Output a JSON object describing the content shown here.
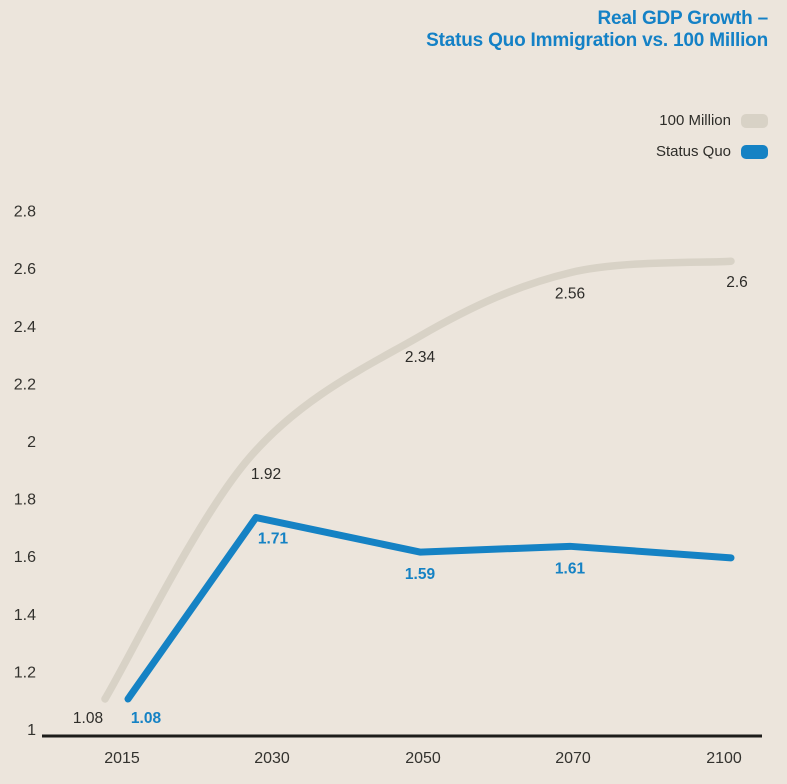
{
  "title": {
    "line1": "Real GDP Growth –",
    "line2": "Status Quo Immigration vs. 100 Million"
  },
  "legend": [
    {
      "label": "100 Million",
      "color": "#d8d2c6"
    },
    {
      "label": "Status Quo",
      "color": "#1582c4"
    }
  ],
  "colors": {
    "background": "#ece5dc",
    "title_text": "#1481c6",
    "axis_line": "#1d1c1a",
    "tick_text": "#33322e",
    "gray_series": "#d8d2c6",
    "blue_series": "#1582c4",
    "gray_label_text": "#2d2c29"
  },
  "chart_data": {
    "type": "line",
    "title": "Real GDP Growth – Status Quo Immigration vs. 100 Million",
    "categories": [
      "2015",
      "2030",
      "2050",
      "2070",
      "2100"
    ],
    "series": [
      {
        "name": "100 Million",
        "color": "#d8d2c6",
        "values": [
          1.08,
          1.92,
          2.34,
          2.56,
          2.6
        ],
        "point_labels": [
          "1.08",
          "1.92",
          "2.34",
          "2.56",
          "2.6"
        ]
      },
      {
        "name": "Status Quo",
        "color": "#1582c4",
        "values": [
          1.08,
          1.71,
          1.59,
          1.61,
          1.57
        ],
        "point_labels": [
          "1.08",
          "1.71",
          "1.59",
          "1.61",
          ""
        ]
      }
    ],
    "ylabel": "",
    "xlabel": "",
    "ylim": [
      1,
      2.8
    ],
    "yticks": [
      "2.8",
      "2.6",
      "2.4",
      "2.2",
      "2",
      "1.8",
      "1.6",
      "1.4",
      "1.2",
      "1"
    ],
    "grid": false,
    "legend_position": "top-right"
  }
}
